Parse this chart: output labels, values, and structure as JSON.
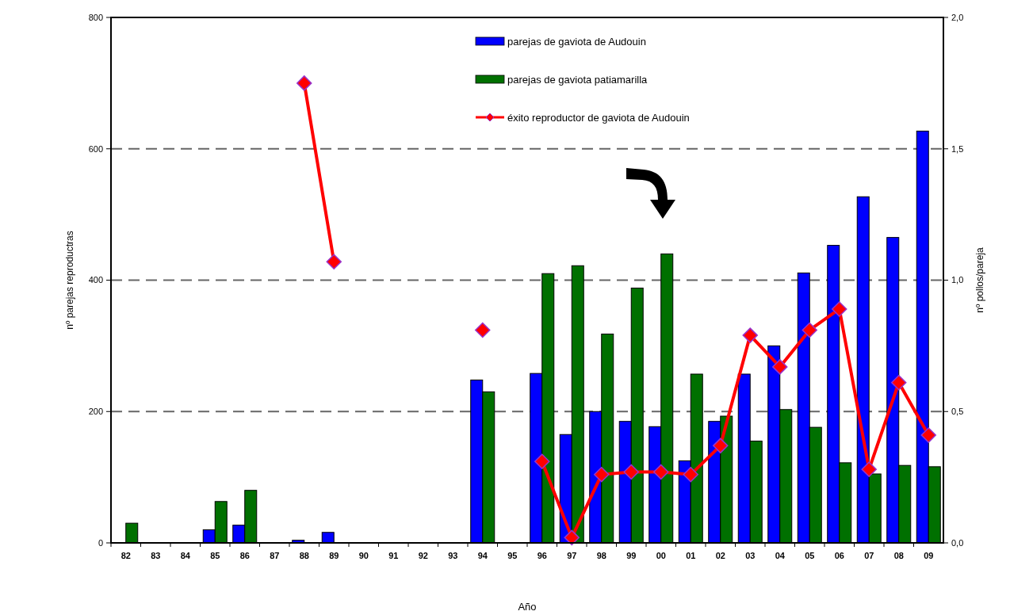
{
  "chart_data": {
    "type": "bar",
    "xlabel": "Año",
    "ylabel": "nº parejas reproductras",
    "y2label": "nº pollos/pareja",
    "categories": [
      "82",
      "83",
      "84",
      "85",
      "86",
      "87",
      "88",
      "89",
      "90",
      "91",
      "92",
      "93",
      "94",
      "95",
      "96",
      "97",
      "98",
      "99",
      "00",
      "01",
      "02",
      "03",
      "04",
      "05",
      "06",
      "07",
      "08",
      "09"
    ],
    "series": [
      {
        "name": "parejas de gaviota de Audouin",
        "color": "#0000ff",
        "values": [
          null,
          null,
          null,
          20,
          27,
          null,
          4,
          16,
          null,
          null,
          null,
          null,
          248,
          null,
          258,
          165,
          200,
          185,
          177,
          125,
          185,
          257,
          300,
          411,
          453,
          527,
          465,
          627
        ]
      },
      {
        "name": "parejas de gaviota patiamarilla",
        "color": "#007000",
        "values": [
          30,
          null,
          null,
          63,
          80,
          null,
          null,
          null,
          null,
          null,
          null,
          null,
          230,
          null,
          410,
          422,
          318,
          388,
          440,
          257,
          193,
          155,
          203,
          176,
          122,
          105,
          118,
          116
        ]
      },
      {
        "name": "éxito reproductor de gaviota de Audouin",
        "type": "line",
        "axis": "y2",
        "color": "#ff0000",
        "marker": "diamond",
        "line_style": "solid",
        "values": [
          null,
          null,
          null,
          null,
          null,
          null,
          1.75,
          1.07,
          null,
          null,
          null,
          null,
          0.81,
          null,
          0.31,
          0.02,
          0.26,
          0.27,
          0.27,
          0.26,
          0.37,
          0.79,
          0.67,
          0.81,
          0.89,
          0.28,
          0.61,
          0.41
        ]
      }
    ],
    "ylim": [
      0,
      800
    ],
    "yticks": [
      0,
      200,
      400,
      600,
      800
    ],
    "y2lim": [
      0,
      2
    ],
    "y2ticks": [
      {
        "value": 0,
        "label": "0,0"
      },
      {
        "value": 0.5,
        "label": "0,5"
      },
      {
        "value": 1,
        "label": "1,0"
      },
      {
        "value": 1.5,
        "label": "1,5"
      },
      {
        "value": 2,
        "label": "2,0"
      }
    ],
    "grid": "y",
    "legend": "top"
  }
}
